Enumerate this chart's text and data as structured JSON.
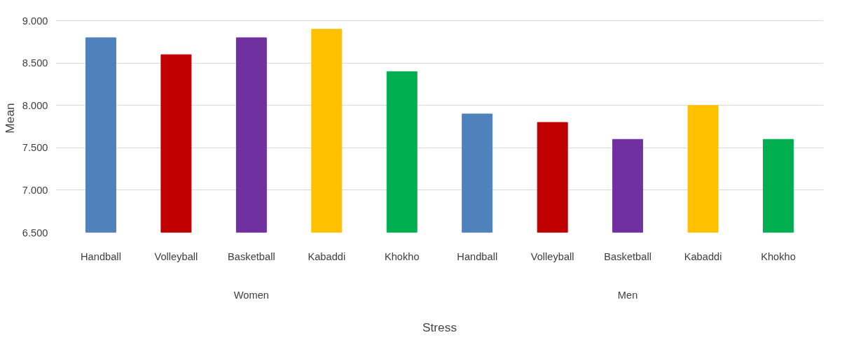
{
  "chart_data": {
    "type": "bar",
    "xlabel": "Stress",
    "ylabel": "Mean",
    "categories": [
      "Handball",
      "Volleyball",
      "Basketball",
      "Kabaddi",
      "Khokho",
      "Handball",
      "Volleyball",
      "Basketball",
      "Kabaddi",
      "Khokho"
    ],
    "values": [
      8.8,
      8.6,
      8.8,
      8.9,
      8.4,
      7.9,
      7.8,
      7.6,
      8.0,
      7.6
    ],
    "colors": [
      "#4f81bd",
      "#c00000",
      "#7030a0",
      "#ffc000",
      "#00b050",
      "#4f81bd",
      "#c00000",
      "#7030a0",
      "#ffc000",
      "#00b050"
    ],
    "annotations": [
      "Women",
      "Men"
    ],
    "ylim": [
      6.5,
      9.0
    ],
    "yticks": [
      {
        "value": 6.5,
        "label": "6.500"
      },
      {
        "value": 7.0,
        "label": "7.000"
      },
      {
        "value": 7.5,
        "label": "7.500"
      },
      {
        "value": 8.0,
        "label": "8.000"
      },
      {
        "value": 8.5,
        "label": "8.500"
      },
      {
        "value": 9.0,
        "label": "9.000"
      }
    ],
    "grid": "y"
  }
}
